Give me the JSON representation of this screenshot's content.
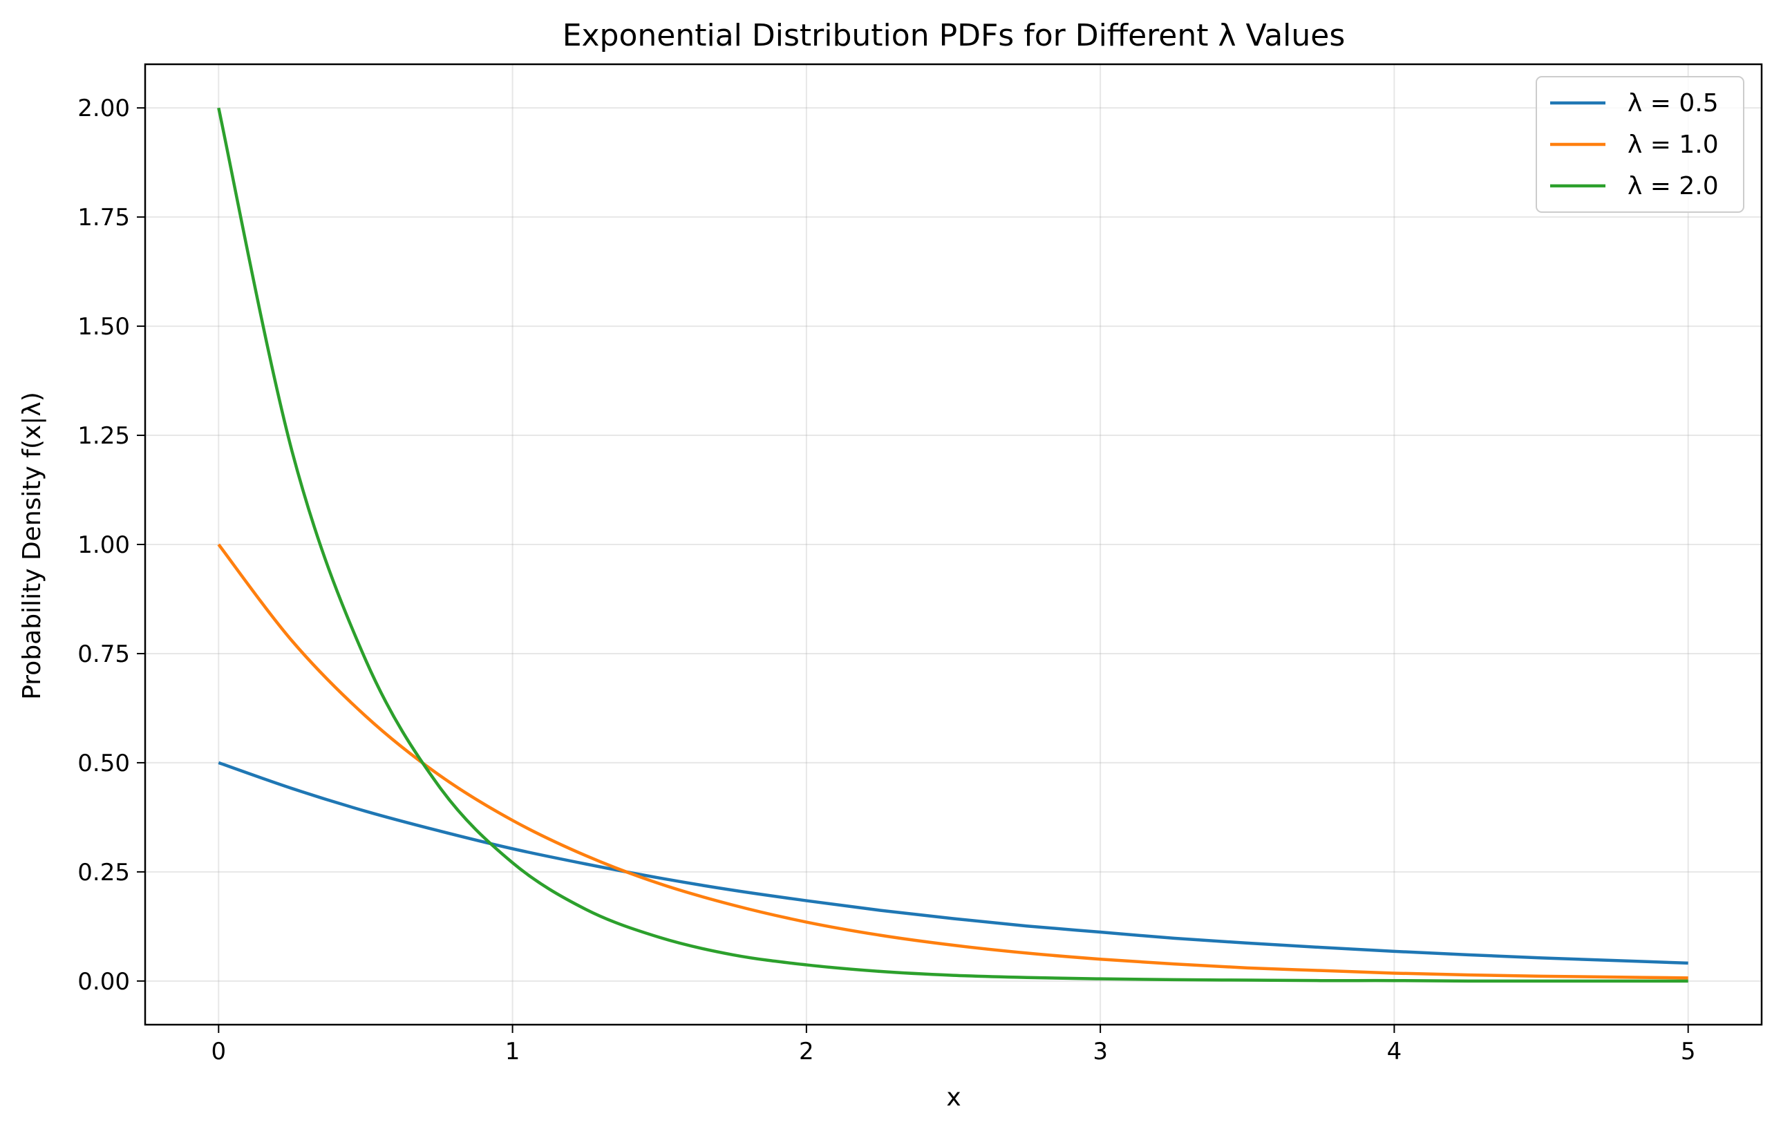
{
  "chart_data": {
    "type": "line",
    "title": "Exponential Distribution PDFs for Different λ Values",
    "xlabel": "x",
    "ylabel": "Probability Density f(x|λ)",
    "xlim": [
      -0.25,
      5.25
    ],
    "ylim": [
      -0.1,
      2.1
    ],
    "xticks": [
      0,
      1,
      2,
      3,
      4,
      5
    ],
    "xtick_labels": [
      "0",
      "1",
      "2",
      "3",
      "4",
      "5"
    ],
    "yticks": [
      0,
      0.25,
      0.5,
      0.75,
      1.0,
      1.25,
      1.5,
      1.75,
      2.0
    ],
    "ytick_labels": [
      "0.00",
      "0.25",
      "0.50",
      "0.75",
      "1.00",
      "1.25",
      "1.50",
      "1.75",
      "2.00"
    ],
    "grid": true,
    "legend_position": "top-right",
    "x": [
      0,
      0.25,
      0.5,
      0.75,
      1.0,
      1.25,
      1.5,
      1.75,
      2.0,
      2.25,
      2.5,
      2.75,
      3.0,
      3.25,
      3.5,
      3.75,
      4.0,
      4.25,
      4.5,
      4.75,
      5.0
    ],
    "series": [
      {
        "name": "λ = 0.5",
        "color": "#1f77b4",
        "values": [
          0.5,
          0.441,
          0.389,
          0.344,
          0.303,
          0.268,
          0.236,
          0.208,
          0.184,
          0.162,
          0.143,
          0.126,
          0.112,
          0.098,
          0.087,
          0.077,
          0.068,
          0.06,
          0.053,
          0.047,
          0.041
        ]
      },
      {
        "name": "λ = 1.0",
        "color": "#ff7f0e",
        "values": [
          1.0,
          0.779,
          0.607,
          0.472,
          0.368,
          0.287,
          0.223,
          0.174,
          0.135,
          0.105,
          0.082,
          0.064,
          0.05,
          0.039,
          0.03,
          0.024,
          0.018,
          0.014,
          0.011,
          0.009,
          0.007
        ]
      },
      {
        "name": "λ = 2.0",
        "color": "#2ca02c",
        "values": [
          2.0,
          1.213,
          0.736,
          0.446,
          0.271,
          0.164,
          0.1,
          0.06,
          0.037,
          0.022,
          0.013,
          0.008,
          0.005,
          0.003,
          0.002,
          0.001,
          0.001,
          0.0,
          0.0,
          0.0,
          0.0
        ]
      }
    ]
  }
}
